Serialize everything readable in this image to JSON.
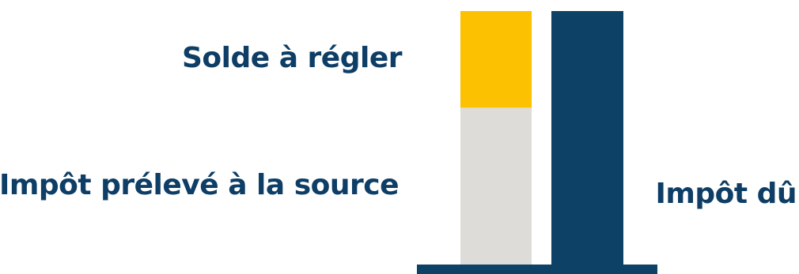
{
  "chart_data": {
    "type": "stacked-bar",
    "bars": [
      {
        "segments": [
          {
            "label": "Impôt prélevé à la source",
            "value": 62,
            "color": "#dddcd8"
          },
          {
            "label": "Solde à régler",
            "value": 38,
            "color": "#fcc100"
          }
        ]
      },
      {
        "label": "Impôt dû",
        "value": 100,
        "color": "#0e4166"
      }
    ],
    "baseline_color": "#0e4166",
    "label_color": "#0e3e66"
  }
}
